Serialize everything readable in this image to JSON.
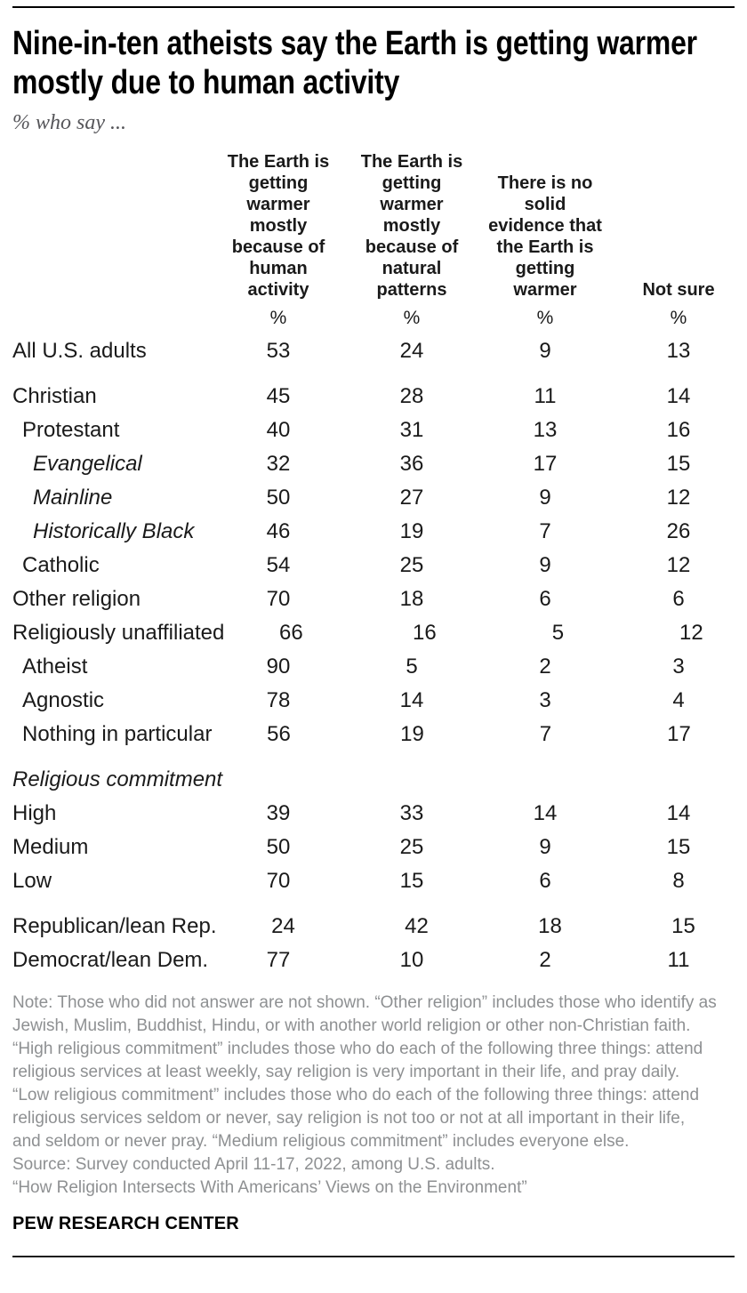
{
  "header": {
    "title": "Nine-in-ten atheists say the Earth is getting warmer mostly due to human activity",
    "subtitle": "% who say ..."
  },
  "chart_data": {
    "type": "table",
    "title": "Nine-in-ten atheists say the Earth is getting warmer mostly due to human activity",
    "subtitle": "% who say ...",
    "unit_symbol": "%",
    "columns": [
      "The Earth is getting warmer mostly because of human activity",
      "The Earth is getting warmer mostly because of natural patterns",
      "There is no solid evidence that the Earth is getting warmer",
      "Not sure"
    ],
    "rows": [
      {
        "label": "All U.S. adults",
        "indent": 0,
        "italic": false,
        "gap_before": false,
        "values": [
          53,
          24,
          9,
          13
        ]
      },
      {
        "label": "Christian",
        "indent": 0,
        "italic": false,
        "gap_before": true,
        "values": [
          45,
          28,
          11,
          14
        ]
      },
      {
        "label": "Protestant",
        "indent": 1,
        "italic": false,
        "gap_before": false,
        "values": [
          40,
          31,
          13,
          16
        ]
      },
      {
        "label": "Evangelical",
        "indent": 2,
        "italic": true,
        "gap_before": false,
        "values": [
          32,
          36,
          17,
          15
        ]
      },
      {
        "label": "Mainline",
        "indent": 2,
        "italic": true,
        "gap_before": false,
        "values": [
          50,
          27,
          9,
          12
        ]
      },
      {
        "label": "Historically Black",
        "indent": 2,
        "italic": true,
        "gap_before": false,
        "values": [
          46,
          19,
          7,
          26
        ]
      },
      {
        "label": "Catholic",
        "indent": 1,
        "italic": false,
        "gap_before": false,
        "values": [
          54,
          25,
          9,
          12
        ]
      },
      {
        "label": "Other religion",
        "indent": 0,
        "italic": false,
        "gap_before": false,
        "values": [
          70,
          18,
          6,
          6
        ]
      },
      {
        "label": "Religiously unaffiliated",
        "indent": 0,
        "italic": false,
        "gap_before": false,
        "values": [
          66,
          16,
          5,
          12
        ]
      },
      {
        "label": "Atheist",
        "indent": 1,
        "italic": false,
        "gap_before": false,
        "values": [
          90,
          5,
          2,
          3
        ]
      },
      {
        "label": "Agnostic",
        "indent": 1,
        "italic": false,
        "gap_before": false,
        "values": [
          78,
          14,
          3,
          4
        ]
      },
      {
        "label": "Nothing in particular",
        "indent": 1,
        "italic": false,
        "gap_before": false,
        "values": [
          56,
          19,
          7,
          17
        ]
      },
      {
        "label": "Religious commitment",
        "indent": 0,
        "italic": true,
        "section": true,
        "gap_before": true,
        "values": null
      },
      {
        "label": "High",
        "indent": 0,
        "italic": false,
        "gap_before": false,
        "values": [
          39,
          33,
          14,
          14
        ]
      },
      {
        "label": "Medium",
        "indent": 0,
        "italic": false,
        "gap_before": false,
        "values": [
          50,
          25,
          9,
          15
        ]
      },
      {
        "label": "Low",
        "indent": 0,
        "italic": false,
        "gap_before": false,
        "values": [
          70,
          15,
          6,
          8
        ]
      },
      {
        "label": "Republican/lean Rep.",
        "indent": 0,
        "italic": false,
        "gap_before": true,
        "values": [
          24,
          42,
          18,
          15
        ]
      },
      {
        "label": "Democrat/lean Dem.",
        "indent": 0,
        "italic": false,
        "gap_before": false,
        "values": [
          77,
          10,
          2,
          11
        ]
      }
    ]
  },
  "footer": {
    "note": "Note: Those who did not answer are not shown. “Other religion” includes those who identify as Jewish, Muslim, Buddhist, Hindu, or with another world religion or other non-Christian faith. “High religious commitment” includes those who do each of the following three things: attend religious services at least weekly, say religion is very important in their life, and pray daily. “Low religious commitment” includes those who do each of the following three things: attend religious services seldom or never, say religion is not too or not at all important in their life, and seldom or never pray. “Medium religious commitment” includes everyone else.",
    "source": "Source: Survey conducted April 11-17, 2022, among U.S. adults.",
    "report": "“How Religion Intersects With Americans’ Views on the Environment”",
    "brand": "PEW RESEARCH CENTER"
  },
  "colors": {
    "title": "#000000",
    "body_text": "#1a1a1a",
    "subtitle_gray": "#56565a",
    "note_gray": "#8e9092",
    "rule": "#000000"
  }
}
